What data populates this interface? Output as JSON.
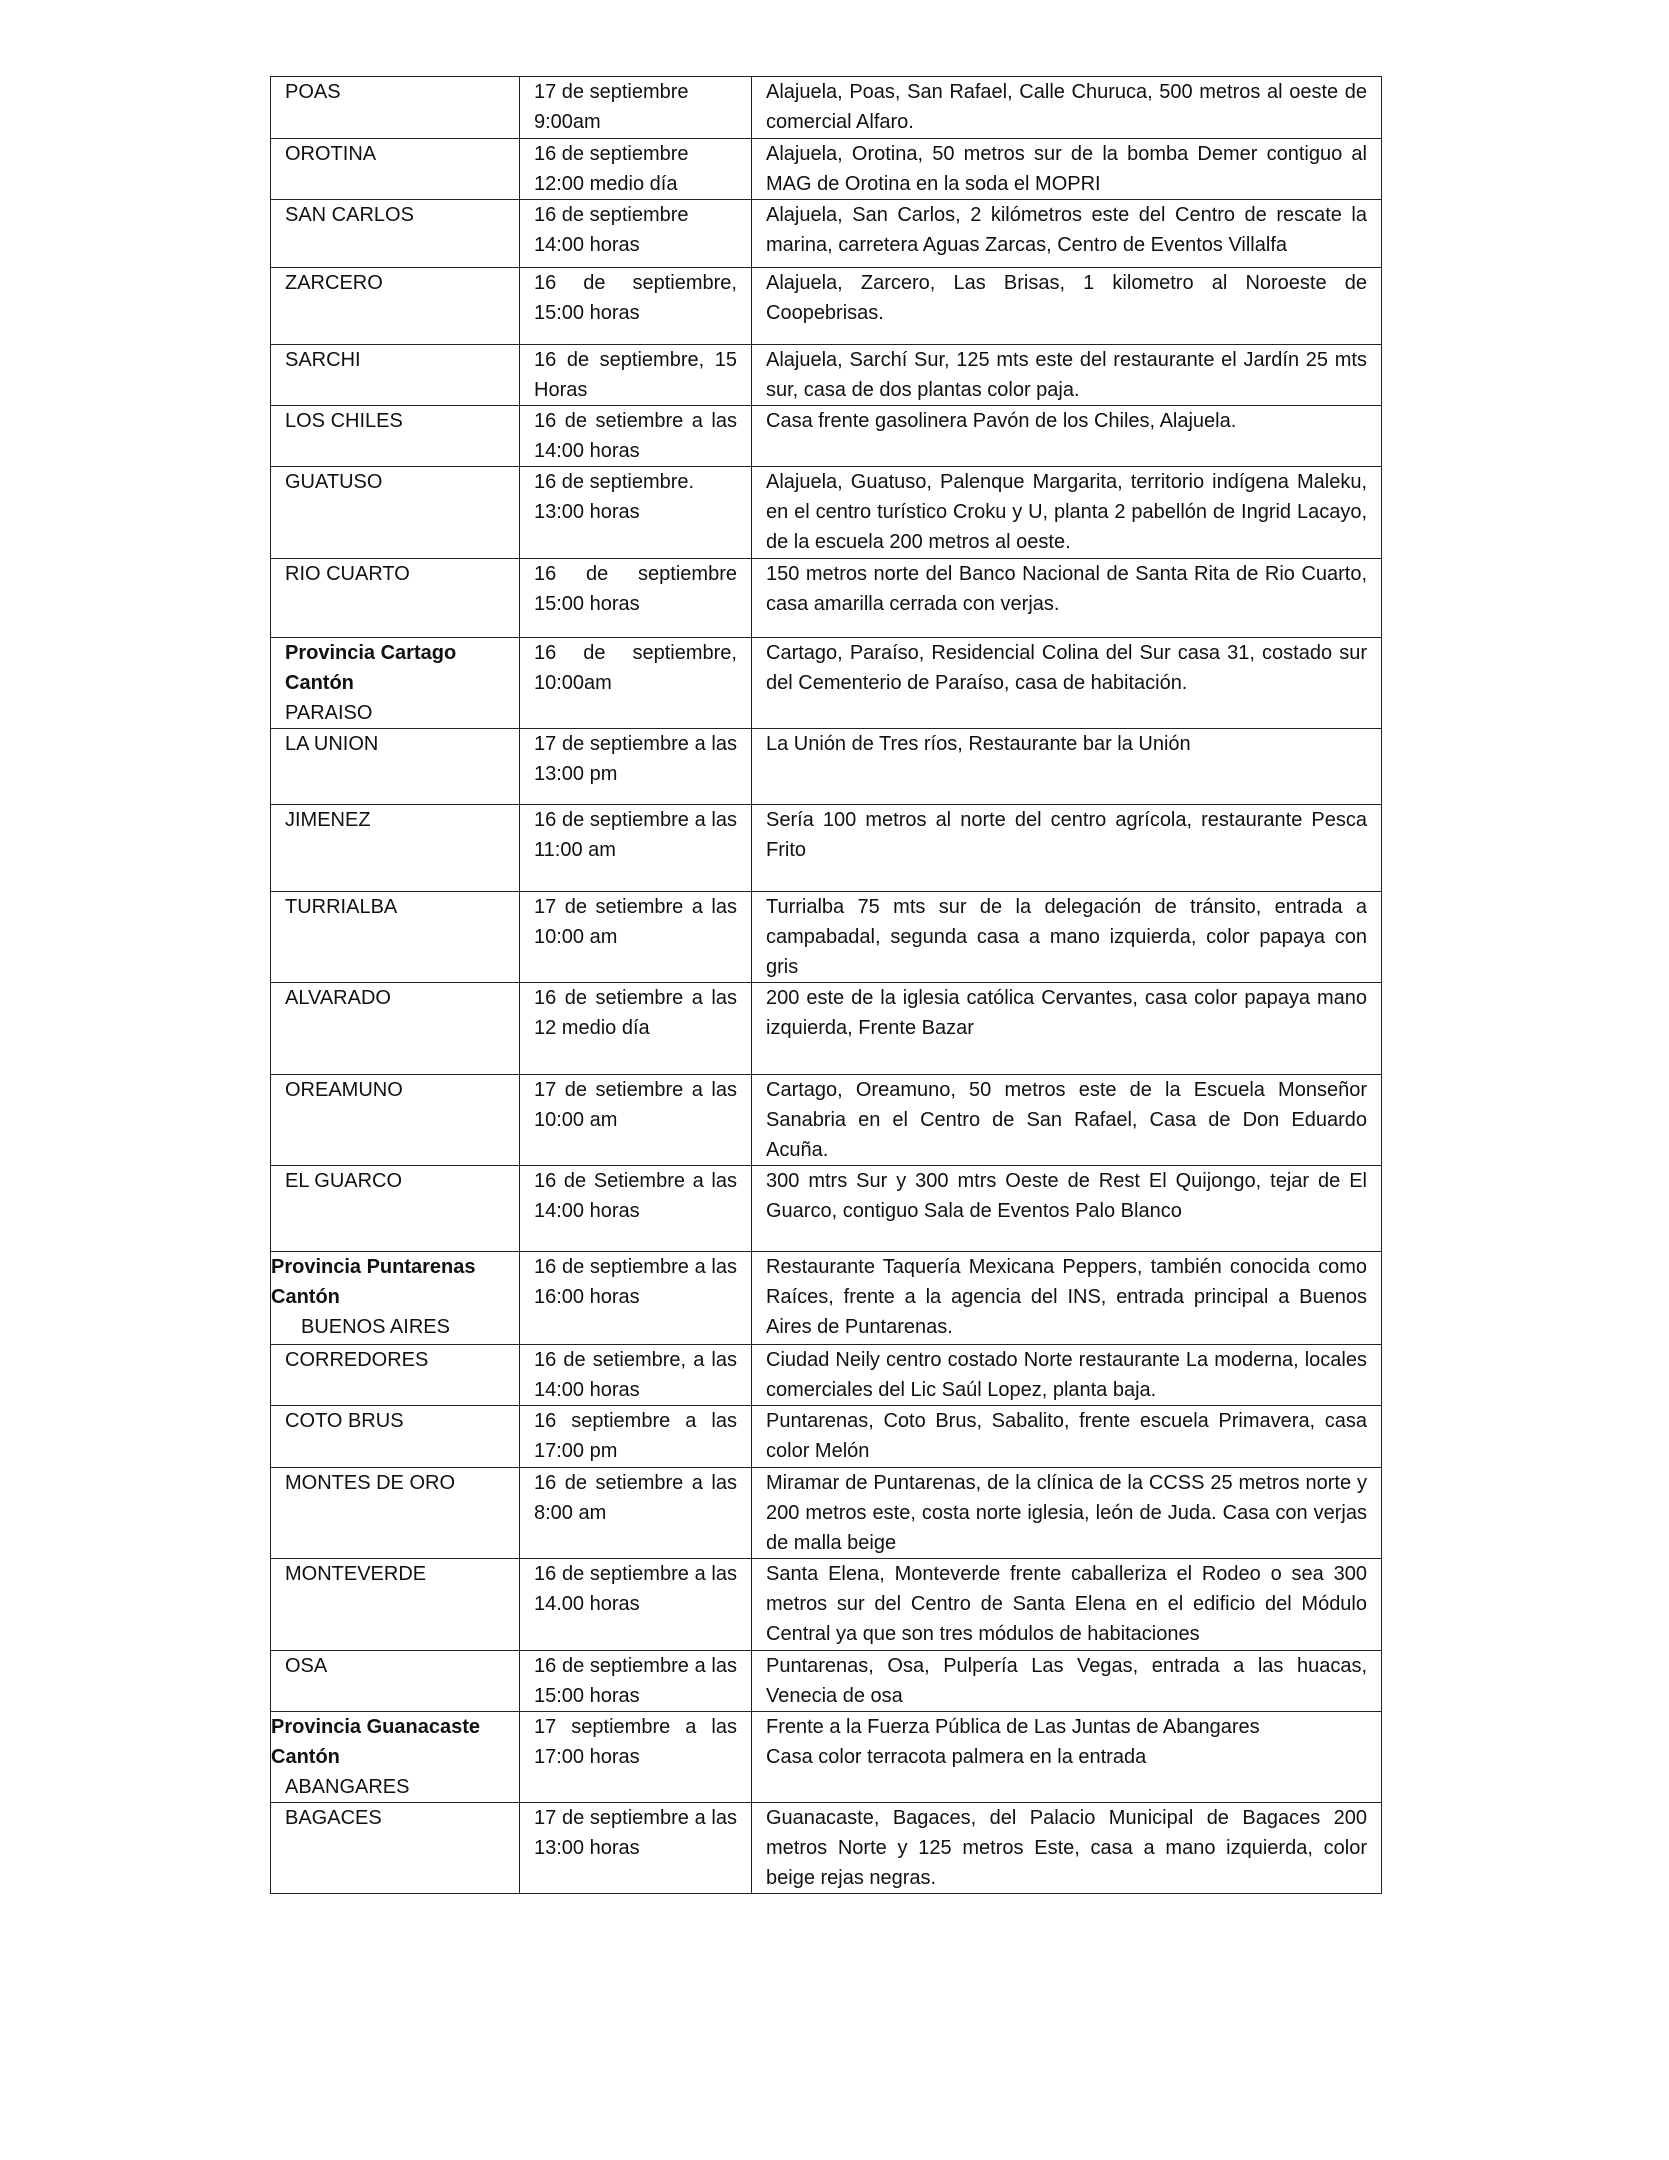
{
  "rows": [
    {
      "canton": "POAS",
      "fecha": [
        "17 de septiembre",
        "9:00am"
      ],
      "direccion": "Alajuela, Poas, San Rafael, Calle Churuca, 500 metros al oeste de comercial Alfaro."
    },
    {
      "canton": "OROTINA",
      "fecha": [
        "16 de septiembre",
        "12:00 medio día"
      ],
      "direccion": "Alajuela, Orotina, 50 metros sur de la bomba Demer contiguo al MAG de Orotina en la soda el MOPRI"
    },
    {
      "canton": "SAN CARLOS",
      "fecha": [
        "16 de septiembre",
        "14:00 horas"
      ],
      "direccion": "Alajuela, San Carlos, 2 kilómetros este del Centro de rescate la marina, carretera Aguas Zarcas, Centro de Eventos Villalfa"
    },
    {
      "canton": "ZARCERO",
      "fecha": [
        "16 de septiembre, 15:00 horas"
      ],
      "direccion": "Alajuela, Zarcero, Las Brisas, 1 kilometro al Noroeste de Coopebrisas."
    },
    {
      "canton": "SARCHI",
      "fecha": [
        "16 de septiembre, 15 Horas"
      ],
      "direccion": "Alajuela, Sarchí Sur, 125 mts este del restaurante el Jardín 25 mts sur, casa de dos plantas color paja."
    },
    {
      "canton": "LOS CHILES",
      "fecha": [
        "16 de setiembre a las 14:00 horas"
      ],
      "direccion": "Casa frente gasolinera Pavón de los Chiles, Alajuela."
    },
    {
      "canton": "GUATUSO",
      "fecha": [
        "16 de septiembre.",
        "13:00 horas"
      ],
      "direccion": "Alajuela, Guatuso, Palenque Margarita, territorio indígena Maleku, en el centro turístico Croku y U, planta 2 pabellón de Ingrid Lacayo, de la escuela 200 metros al oeste."
    },
    {
      "canton": "RIO CUARTO",
      "fecha": [
        "16 de septiembre 15:00 horas"
      ],
      "direccion": "150 metros norte del Banco Nacional de Santa Rita de Rio Cuarto, casa amarilla cerrada con verjas."
    },
    {
      "provincia": "Provincia Cartago",
      "canton_label": "Cantón",
      "canton": "PARAISO",
      "prov_inline": true,
      "fecha": [
        "16 de septiembre, 10:00am"
      ],
      "direccion": "Cartago, Paraíso, Residencial Colina del Sur casa 31, costado sur del Cementerio de Paraíso, casa de habitación."
    },
    {
      "canton": "LA UNION",
      "fecha": [
        "17 de septiembre a las 13:00 pm"
      ],
      "direccion": "La Unión de Tres ríos, Restaurante bar la Unión"
    },
    {
      "canton": "JIMENEZ",
      "fecha": [
        "16 de septiembre a las 11:00 am"
      ],
      "direccion": "Sería 100 metros al norte del centro agrícola, restaurante Pesca Frito"
    },
    {
      "canton": "TURRIALBA",
      "fecha": [
        "17 de setiembre a las 10:00 am"
      ],
      "direccion": "Turrialba 75 mts sur de la delegación de tránsito, entrada a campabadal, segunda casa a mano izquierda, color papaya con gris"
    },
    {
      "canton": "ALVARADO",
      "fecha": [
        "16 de setiembre a las 12 medio día"
      ],
      "direccion": "200 este de la iglesia católica Cervantes, casa color papaya mano izquierda, Frente Bazar"
    },
    {
      "canton": "OREAMUNO",
      "fecha": [
        "17 de setiembre a las 10:00 am"
      ],
      "direccion": "Cartago, Oreamuno, 50 metros este de la Escuela Monseñor Sanabria en el Centro de San Rafael, Casa de Don Eduardo Acuña."
    },
    {
      "canton": "EL GUARCO",
      "fecha": [
        "16 de Setiembre a las 14:00 horas"
      ],
      "direccion": "300 mtrs Sur y 300 mtrs Oeste de Rest El Quijongo, tejar de El Guarco, contiguo Sala de Eventos Palo Blanco"
    },
    {
      "provincia": "Provincia Puntarenas",
      "canton_label": "Cantón",
      "canton": "BUENOS AIRES",
      "indent": true,
      "fecha": [
        "16 de septiembre a las 16:00 horas"
      ],
      "direccion": "Restaurante Taquería Mexicana Peppers, también conocida como Raíces, frente a la agencia del INS, entrada principal a Buenos Aires de Puntarenas."
    },
    {
      "canton": "CORREDORES",
      "fecha": [
        "16 de setiembre, a las 14:00 horas"
      ],
      "direccion": "Ciudad Neily centro costado Norte restaurante La moderna, locales comerciales del Lic Saúl Lopez, planta baja."
    },
    {
      "canton": "COTO BRUS",
      "fecha": [
        "16 septiembre a las 17:00 pm"
      ],
      "direccion": "Puntarenas, Coto Brus, Sabalito, frente escuela Primavera, casa color Melón"
    },
    {
      "canton": "MONTES DE ORO",
      "fecha": [
        "16 de setiembre a las 8:00 am"
      ],
      "direccion": "Miramar de Puntarenas, de la clínica de la CCSS 25 metros norte y 200 metros este, costa norte iglesia, león de Juda. Casa con verjas de malla beige"
    },
    {
      "canton": "MONTEVERDE",
      "fecha": [
        "16 de septiembre a las 14.00 horas"
      ],
      "direccion": "Santa Elena, Monteverde frente caballeriza el Rodeo o sea 300 metros sur del Centro de Santa Elena en el edificio del Módulo Central ya que son tres módulos de habitaciones"
    },
    {
      "canton": "OSA",
      "fecha": [
        "16 de septiembre a las 15:00 horas"
      ],
      "direccion": "Puntarenas, Osa, Pulpería Las Vegas, entrada a las huacas, Venecia de osa"
    },
    {
      "provincia": "Provincia Guanacaste",
      "canton_label": "Cantón",
      "canton": "ABANGARES",
      "fecha": [
        "17 septiembre a las 17:00 horas"
      ],
      "direccion": [
        "Frente a la Fuerza Pública de Las Juntas de Abangares",
        "Casa color terracota palmera en la entrada"
      ]
    },
    {
      "canton": "BAGACES",
      "fecha": [
        "17 de septiembre a las 13:00 horas"
      ],
      "direccion": "Guanacaste, Bagaces, del Palacio Municipal de Bagaces 200 metros Norte y 125 metros Este, casa a mano izquierda, color beige rejas negras."
    }
  ]
}
